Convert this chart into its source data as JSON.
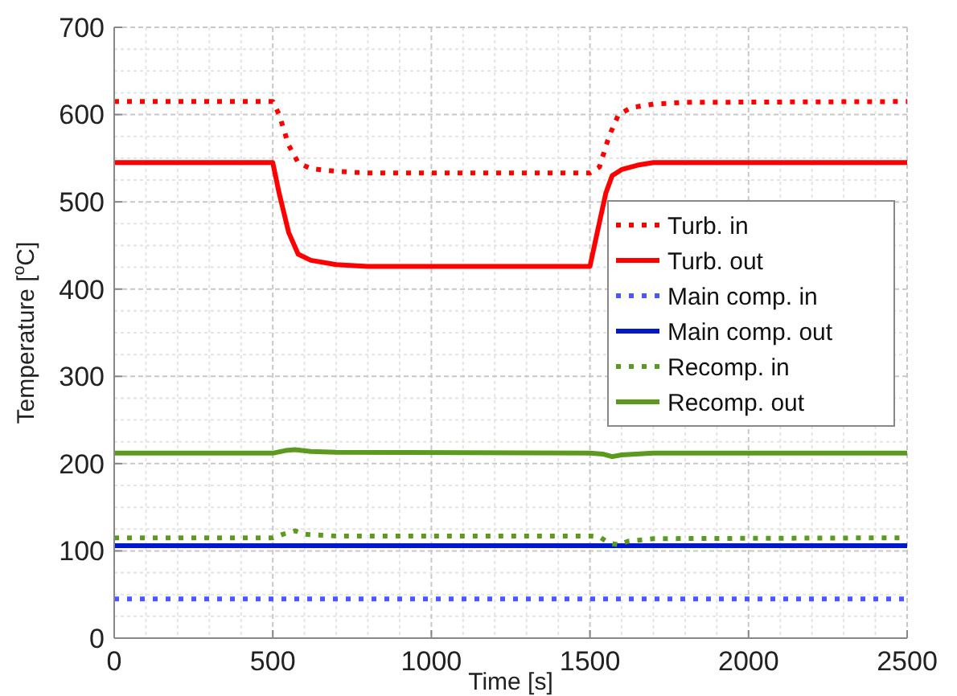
{
  "chart_data": {
    "type": "line",
    "xlabel": "Time [s]",
    "ylabel": "Temperature [$^{o}$C]",
    "xlim": [
      0,
      2500
    ],
    "ylim": [
      0,
      700
    ],
    "xticks": [
      0,
      500,
      1000,
      1500,
      2000,
      2500
    ],
    "yticks": [
      0,
      100,
      200,
      300,
      400,
      500,
      600,
      700
    ],
    "grid": true,
    "legend": "right",
    "series": [
      {
        "name": "Turb. in",
        "color": "#ff0000",
        "line_style": "dotted",
        "x": [
          0,
          500,
          520,
          550,
          580,
          620,
          700,
          800,
          1500,
          1530,
          1560,
          1590,
          1630,
          1700,
          1800,
          2500
        ],
        "values": [
          615,
          615,
          600,
          565,
          545,
          538,
          535,
          533,
          533,
          540,
          575,
          600,
          608,
          612,
          614,
          615
        ]
      },
      {
        "name": "Turb. out",
        "color": "#ff0000",
        "line_style": "solid",
        "x": [
          0,
          500,
          520,
          550,
          580,
          620,
          700,
          800,
          1500,
          1520,
          1550,
          1570,
          1600,
          1650,
          1700,
          2500
        ],
        "values": [
          545,
          545,
          510,
          465,
          440,
          433,
          428,
          426,
          426,
          460,
          510,
          530,
          537,
          542,
          545,
          545
        ]
      },
      {
        "name": "Main comp. in",
        "color": "#4d55ff",
        "line_style": "dotted",
        "x": [
          0,
          2500
        ],
        "values": [
          45,
          45
        ]
      },
      {
        "name": "Main comp. out",
        "color": "#0019cc",
        "line_style": "solid",
        "x": [
          0,
          2500
        ],
        "values": [
          106,
          106
        ]
      },
      {
        "name": "Recomp. in",
        "color": "#5b9a1e",
        "line_style": "dotted",
        "x": [
          0,
          500,
          540,
          570,
          600,
          700,
          1500,
          1530,
          1560,
          1590,
          1620,
          1700,
          2500
        ],
        "values": [
          115,
          115,
          120,
          123,
          119,
          117,
          117,
          116,
          109,
          107,
          111,
          114,
          115
        ]
      },
      {
        "name": "Recomp. out",
        "color": "#5b9a1e",
        "line_style": "solid",
        "x": [
          0,
          500,
          540,
          570,
          620,
          700,
          1500,
          1540,
          1570,
          1600,
          1700,
          2500
        ],
        "values": [
          212,
          212,
          215,
          216,
          214,
          213,
          212,
          211,
          208,
          210,
          212,
          212
        ]
      }
    ]
  }
}
